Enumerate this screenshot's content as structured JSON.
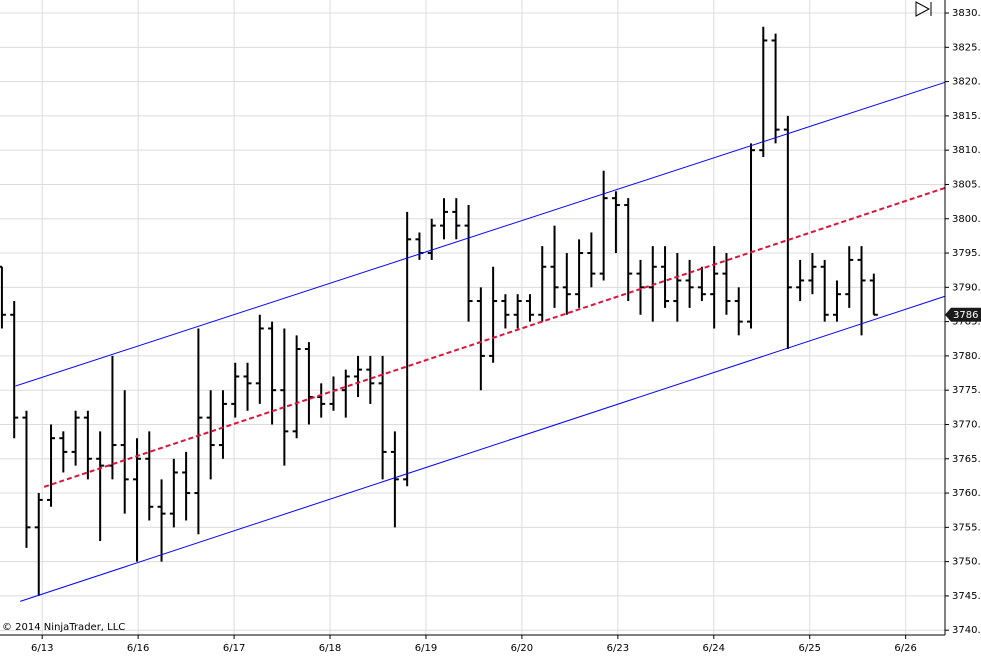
{
  "chart_data": {
    "type": "ohlc",
    "copyright": "© 2014 NinjaTrader, LLC",
    "last_price_label": "3786",
    "bar_color": "#000000",
    "grid": true,
    "xlim": [
      -0.44,
      9.41
    ],
    "ylim": [
      3739.3,
      3831.9
    ],
    "xticks": [
      {
        "value": 0,
        "label": "6/13"
      },
      {
        "value": 1,
        "label": "6/16"
      },
      {
        "value": 2,
        "label": "6/17"
      },
      {
        "value": 3,
        "label": "6/18"
      },
      {
        "value": 4,
        "label": "6/19"
      },
      {
        "value": 5,
        "label": "6/20"
      },
      {
        "value": 6,
        "label": "6/23"
      },
      {
        "value": 7,
        "label": "6/24"
      },
      {
        "value": 8,
        "label": "6/25"
      },
      {
        "value": 9,
        "label": "6/26"
      }
    ],
    "yticks": [
      {
        "value": 3740,
        "label": "3740.0"
      },
      {
        "value": 3745,
        "label": "3745.0"
      },
      {
        "value": 3750,
        "label": "3750.0"
      },
      {
        "value": 3755,
        "label": "3755.0"
      },
      {
        "value": 3760,
        "label": "3760.0"
      },
      {
        "value": 3765,
        "label": "3765.0"
      },
      {
        "value": 3770,
        "label": "3770.0"
      },
      {
        "value": 3775,
        "label": "3775.0"
      },
      {
        "value": 3780,
        "label": "3780.0"
      },
      {
        "value": 3785,
        "label": "3785.0"
      },
      {
        "value": 3790,
        "label": "3790.0"
      },
      {
        "value": 3795,
        "label": "3795.0"
      },
      {
        "value": 3800,
        "label": "3800.0"
      },
      {
        "value": 3805,
        "label": "3805.0"
      },
      {
        "value": 3810,
        "label": "3810.0"
      },
      {
        "value": 3815,
        "label": "3815.0"
      },
      {
        "value": 3820,
        "label": "3820.0"
      },
      {
        "value": 3825,
        "label": "3825.0"
      },
      {
        "value": 3830,
        "label": "3830.0"
      }
    ],
    "x": [
      -0.42,
      -0.292,
      -0.164,
      -0.036,
      0.092,
      0.22,
      0.348,
      0.476,
      0.604,
      0.732,
      0.86,
      0.988,
      1.116,
      1.244,
      1.372,
      1.5,
      1.628,
      1.756,
      1.884,
      2.012,
      2.14,
      2.268,
      2.396,
      2.524,
      2.652,
      2.78,
      2.908,
      3.036,
      3.164,
      3.292,
      3.42,
      3.548,
      3.676,
      3.804,
      3.932,
      4.06,
      4.188,
      4.316,
      4.444,
      4.572,
      4.7,
      4.828,
      4.956,
      5.084,
      5.212,
      5.34,
      5.468,
      5.596,
      5.724,
      5.852,
      5.98,
      6.108,
      6.236,
      6.364,
      6.492,
      6.62,
      6.748,
      6.876,
      7.004,
      7.132,
      7.26,
      7.388,
      7.516,
      7.644,
      7.772,
      7.9,
      8.028,
      8.156,
      8.284,
      8.412,
      8.54,
      8.668
    ],
    "open": [
      3793,
      3786,
      3771,
      3755,
      3759,
      3768,
      3766,
      3771,
      3765,
      3764,
      3767,
      3762,
      3765,
      3758,
      3757,
      3763,
      3760,
      3771,
      3767,
      3773,
      3777,
      3776,
      3784,
      3775,
      3769,
      3781,
      3774,
      3773,
      3775,
      3777,
      3778,
      3776,
      3766,
      3762,
      3797,
      3795,
      3799,
      3801,
      3799,
      3788,
      3780,
      3788,
      3786,
      3788,
      3786,
      3793,
      3790,
      3789,
      3795,
      3792,
      3803,
      3802,
      3792,
      3790,
      3793,
      3788,
      3791,
      3790,
      3789,
      3792,
      3788,
      3785,
      3810,
      3826,
      3813,
      3790,
      3791,
      3793,
      3786,
      3789,
      3794,
      3791
    ],
    "high": [
      3793,
      3788,
      3772,
      3760,
      3770,
      3769,
      3772,
      3772,
      3769,
      3780,
      3775,
      3768,
      3769,
      3762,
      3765,
      3766,
      3784,
      3775,
      3775,
      3779,
      3779,
      3786,
      3785,
      3784,
      3783,
      3782,
      3776,
      3777,
      3778,
      3780,
      3780,
      3780,
      3769,
      3801,
      3798,
      3800,
      3803,
      3803,
      3802,
      3790,
      3793,
      3789,
      3789,
      3789,
      3796,
      3799,
      3795,
      3797,
      3798,
      3807,
      3804,
      3803,
      3794,
      3796,
      3796,
      3795,
      3794,
      3793,
      3796,
      3795,
      3790,
      3811,
      3828,
      3827,
      3815,
      3794,
      3795,
      3794,
      3791,
      3796,
      3796,
      3792
    ],
    "low": [
      3784,
      3768,
      3752,
      3745,
      3758,
      3763,
      3764,
      3762,
      3753,
      3762,
      3757,
      3750,
      3756,
      3750,
      3755,
      3756,
      3754,
      3762,
      3765,
      3771,
      3772,
      3773,
      3770,
      3764,
      3768,
      3770,
      3771,
      3772,
      3771,
      3774,
      3773,
      3762,
      3755,
      3761,
      3794,
      3794,
      3797,
      3797,
      3785,
      3775,
      3779,
      3784,
      3784,
      3785,
      3785,
      3787,
      3786,
      3787,
      3790,
      3791,
      3795,
      3788,
      3786,
      3785,
      3787,
      3785,
      3787,
      3788,
      3784,
      3786,
      3783,
      3784,
      3809,
      3811,
      3781,
      3788,
      3789,
      3785,
      3785,
      3787,
      3783,
      3786
    ],
    "close": [
      3786,
      3771,
      3755,
      3759,
      3768,
      3766,
      3771,
      3765,
      3764,
      3767,
      3762,
      3765,
      3758,
      3757,
      3763,
      3760,
      3771,
      3767,
      3773,
      3777,
      3776,
      3784,
      3775,
      3769,
      3781,
      3774,
      3773,
      3775,
      3777,
      3778,
      3776,
      3766,
      3762,
      3797,
      3795,
      3799,
      3801,
      3799,
      3788,
      3780,
      3788,
      3786,
      3788,
      3786,
      3793,
      3790,
      3789,
      3795,
      3792,
      3803,
      3802,
      3792,
      3790,
      3793,
      3788,
      3791,
      3790,
      3789,
      3792,
      3788,
      3785,
      3810,
      3826,
      3813,
      3790,
      3791,
      3793,
      3786,
      3789,
      3794,
      3791,
      3786
    ],
    "channel_lines": [
      {
        "x": [
          -0.28,
          9.41
        ],
        "values": [
          3775.6,
          3819.9
        ],
        "color": "#0000ff",
        "dashed": false
      },
      {
        "x": [
          0.02,
          9.41
        ],
        "values": [
          3760.9,
          3804.5
        ],
        "color": "#dc143c",
        "dashed": true
      },
      {
        "x": [
          -0.23,
          9.41
        ],
        "values": [
          3744.2,
          3788.7
        ],
        "color": "#0000ff",
        "dashed": false
      }
    ]
  }
}
